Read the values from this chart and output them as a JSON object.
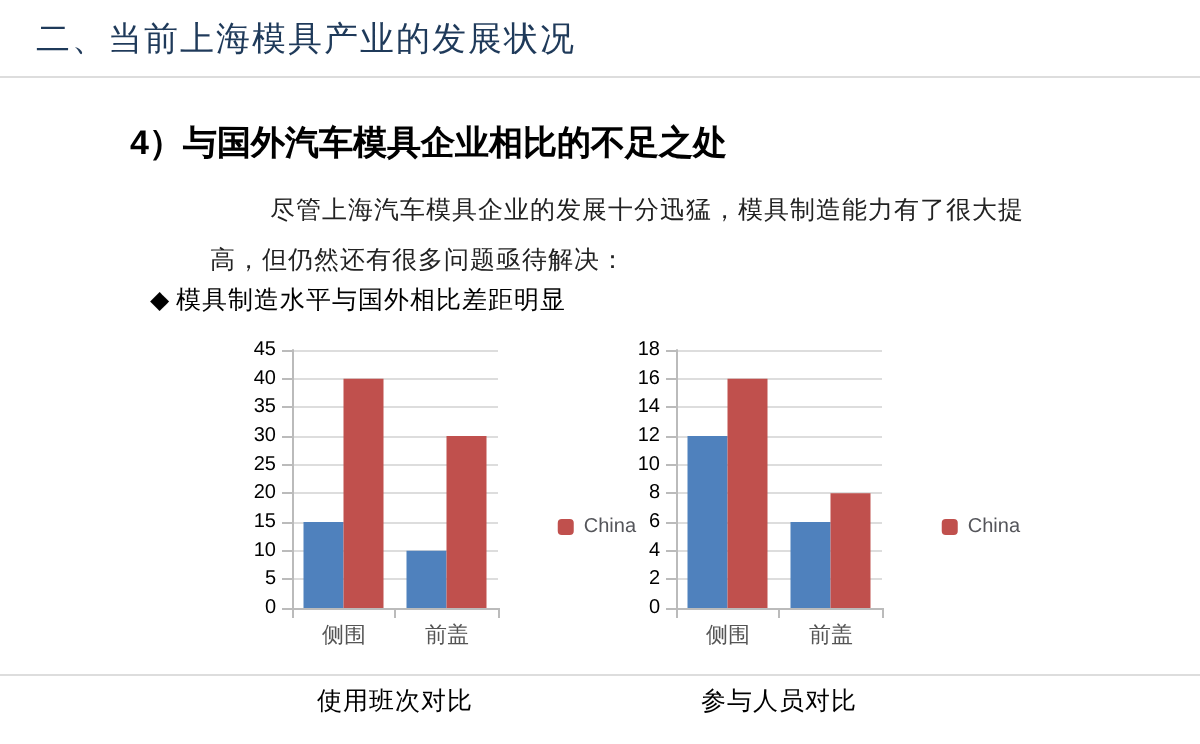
{
  "chart_data": [
    {
      "type": "bar",
      "annotations": [
        "二、当前上海模具产业的发展状况",
        "4）与国外汽车模具企业相比的不足之处",
        "尽管上海汽车模具企业的发展十分迅猛，模具制造能力有了很大提高，但仍然还有很多问题亟待解决：",
        "◆ 模具制造水平与国外相比差距明显"
      ],
      "xlabel": "使用班次对比",
      "categories": [
        "侧围",
        "前盖"
      ],
      "series": [
        {
          "color": "#4f81bd",
          "values": [
            15,
            10
          ]
        },
        {
          "name": "China",
          "color": "#c0504d",
          "values": [
            40,
            30
          ]
        }
      ],
      "ylim": [
        0,
        45
      ],
      "yticks": [
        0,
        5,
        10,
        15,
        20,
        25,
        30,
        35,
        40,
        45
      ],
      "grid": "y",
      "legend": "right"
    },
    {
      "type": "bar",
      "xlabel": "参与人员对比",
      "categories": [
        "侧围",
        "前盖"
      ],
      "series": [
        {
          "color": "#4f81bd",
          "values": [
            12,
            6
          ]
        },
        {
          "name": "China",
          "color": "#c0504d",
          "values": [
            16,
            8
          ]
        }
      ],
      "ylim": [
        0,
        18
      ],
      "yticks": [
        0,
        2,
        4,
        6,
        8,
        10,
        12,
        14,
        16,
        18
      ],
      "grid": "y",
      "legend": "right"
    }
  ]
}
